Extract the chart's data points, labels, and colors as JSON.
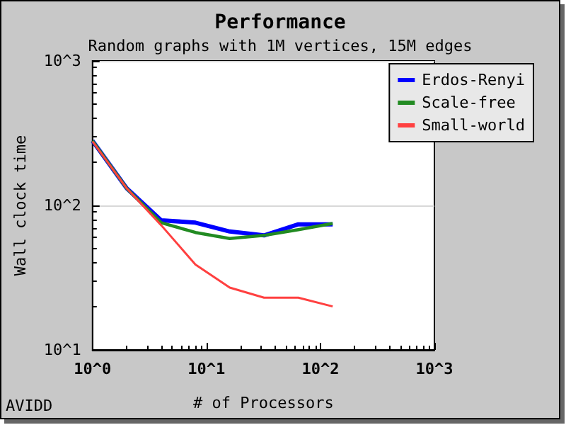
{
  "chart_data": {
    "type": "line",
    "title": "Performance",
    "subtitle": "Random graphs with 1M vertices, 15M edges",
    "xlabel": "# of Processors",
    "ylabel": "Wall clock time",
    "x": [
      1,
      2,
      4,
      8,
      16,
      32,
      64,
      128
    ],
    "series": [
      {
        "name": "Erdos-Renyi",
        "color": "#0000ff",
        "values": [
          280,
          131,
          79,
          76,
          66,
          62,
          74,
          74
        ]
      },
      {
        "name": "Scale-free",
        "color": "#228b22",
        "values": [
          280,
          131,
          76,
          65,
          59,
          62,
          68,
          75
        ]
      },
      {
        "name": "Small-world",
        "color": "#ff4040",
        "values": [
          277,
          131,
          73,
          39,
          27,
          23,
          23,
          20
        ]
      }
    ],
    "log": "xy",
    "xlim": [
      1,
      1000
    ],
    "ylim": [
      10,
      1000
    ],
    "xticks": [
      {
        "value": 1,
        "label": "10^0"
      },
      {
        "value": 10,
        "label": "10^1"
      },
      {
        "value": 100,
        "label": "10^2"
      },
      {
        "value": 1000,
        "label": "10^3"
      }
    ],
    "yticks": [
      {
        "value": 10,
        "label": "10^1"
      },
      {
        "value": 100,
        "label": "10^2"
      },
      {
        "value": 1000,
        "label": "10^3"
      }
    ],
    "grid": "y",
    "legend": "top right",
    "marker": "none",
    "line_style": "solid",
    "annotations": [
      "AVIDD"
    ]
  }
}
